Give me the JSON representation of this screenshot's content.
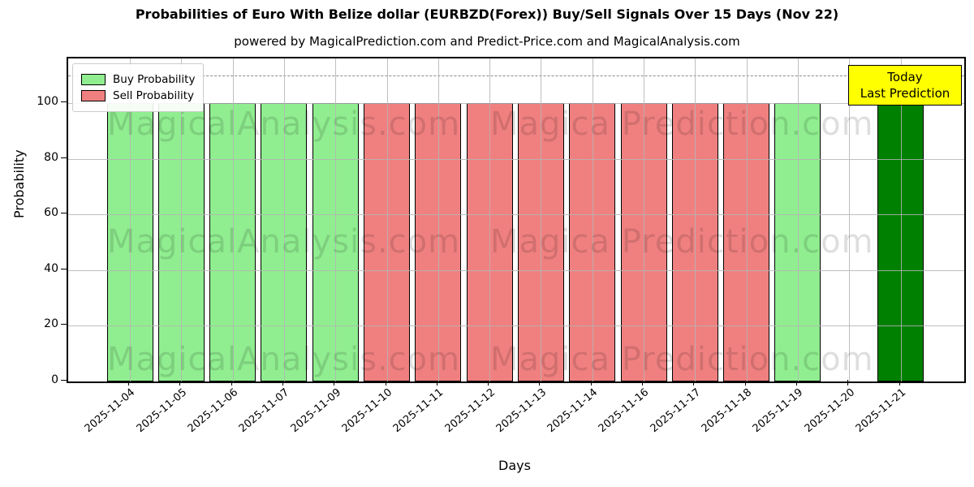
{
  "title": "Probabilities of Euro With Belize dollar (EURBZD(Forex)) Buy/Sell Signals Over 15 Days (Nov 22)",
  "subtitle": "powered by MagicalPrediction.com and Predict-Price.com and MagicalAnalysis.com",
  "legend": {
    "items": [
      {
        "label": "Buy Probability",
        "color": "#90EE90"
      },
      {
        "label": "Sell Probability",
        "color": "#F08080"
      }
    ]
  },
  "annotation": {
    "line1": "Today",
    "line2": "Last Prediction",
    "bg_color": "#FFFF00"
  },
  "watermark": {
    "left_text": "MagicalAnalysis.com",
    "right_text": "Magica Prediction.com"
  },
  "chart_data": {
    "type": "bar",
    "title": "Probabilities of Euro With Belize dollar (EURBZD(Forex)) Buy/Sell Signals Over 15 Days (Nov 22)",
    "xlabel": "Days",
    "ylabel": "Probability",
    "ylim": [
      0,
      116
    ],
    "yticks": [
      0,
      20,
      40,
      60,
      80,
      100
    ],
    "grid": true,
    "legend_position": "upper left",
    "dashed_line_y": 110,
    "categories": [
      "2025-11-04",
      "2025-11-05",
      "2025-11-06",
      "2025-11-07",
      "2025-11-09",
      "2025-11-10",
      "2025-11-11",
      "2025-11-12",
      "2025-11-13",
      "2025-11-14",
      "2025-11-16",
      "2025-11-17",
      "2025-11-18",
      "2025-11-19",
      "2025-11-20",
      "2025-11-21"
    ],
    "series": [
      {
        "name": "Buy Probability",
        "color": "#90EE90",
        "values": [
          100,
          100,
          100,
          100,
          100,
          0,
          0,
          0,
          0,
          0,
          0,
          0,
          0,
          100,
          0,
          0
        ]
      },
      {
        "name": "Sell Probability",
        "color": "#F08080",
        "values": [
          0,
          0,
          0,
          0,
          0,
          100,
          100,
          100,
          100,
          100,
          100,
          100,
          100,
          0,
          0,
          0
        ]
      },
      {
        "name": "Today Last Prediction",
        "color": "#008000",
        "values": [
          0,
          0,
          0,
          0,
          0,
          0,
          0,
          0,
          0,
          0,
          0,
          0,
          0,
          0,
          0,
          100
        ]
      }
    ]
  }
}
